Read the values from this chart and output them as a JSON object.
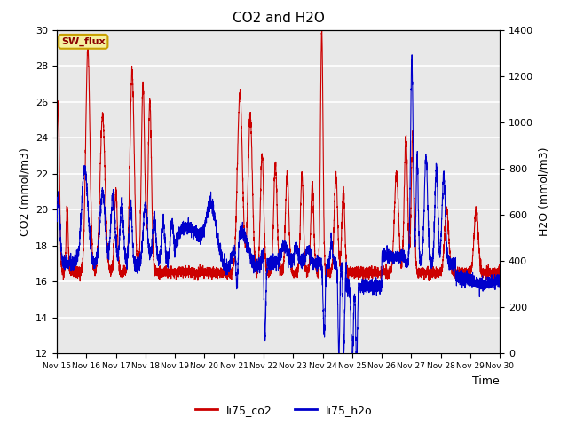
{
  "title": "CO2 and H2O",
  "xlabel": "Time",
  "ylabel_left": "CO2 (mmol/m3)",
  "ylabel_right": "H2O (mmol/m3)",
  "xlim": [
    15,
    30
  ],
  "ylim_left": [
    12,
    30
  ],
  "ylim_right": [
    0,
    1400
  ],
  "xtick_labels": [
    "Nov 15",
    "Nov 16",
    "Nov 17",
    "Nov 18",
    "Nov 19",
    "Nov 20",
    "Nov 21",
    "Nov 22",
    "Nov 23",
    "Nov 24",
    "Nov 25",
    "Nov 26",
    "Nov 27",
    "Nov 28",
    "Nov 29",
    "Nov 30"
  ],
  "xtick_positions": [
    15,
    16,
    17,
    18,
    19,
    20,
    21,
    22,
    23,
    24,
    25,
    26,
    27,
    28,
    29,
    30
  ],
  "yticks_left": [
    12,
    14,
    16,
    18,
    20,
    22,
    24,
    26,
    28,
    30
  ],
  "yticks_right": [
    0,
    200,
    400,
    600,
    800,
    1000,
    1200,
    1400
  ],
  "color_co2": "#cc0000",
  "color_h2o": "#0000cc",
  "legend_labels": [
    "li75_co2",
    "li75_h2o"
  ],
  "annotation_text": "SW_flux",
  "bg_color": "#e8e8e8",
  "grid_color": "#ffffff",
  "linewidth": 0.8
}
